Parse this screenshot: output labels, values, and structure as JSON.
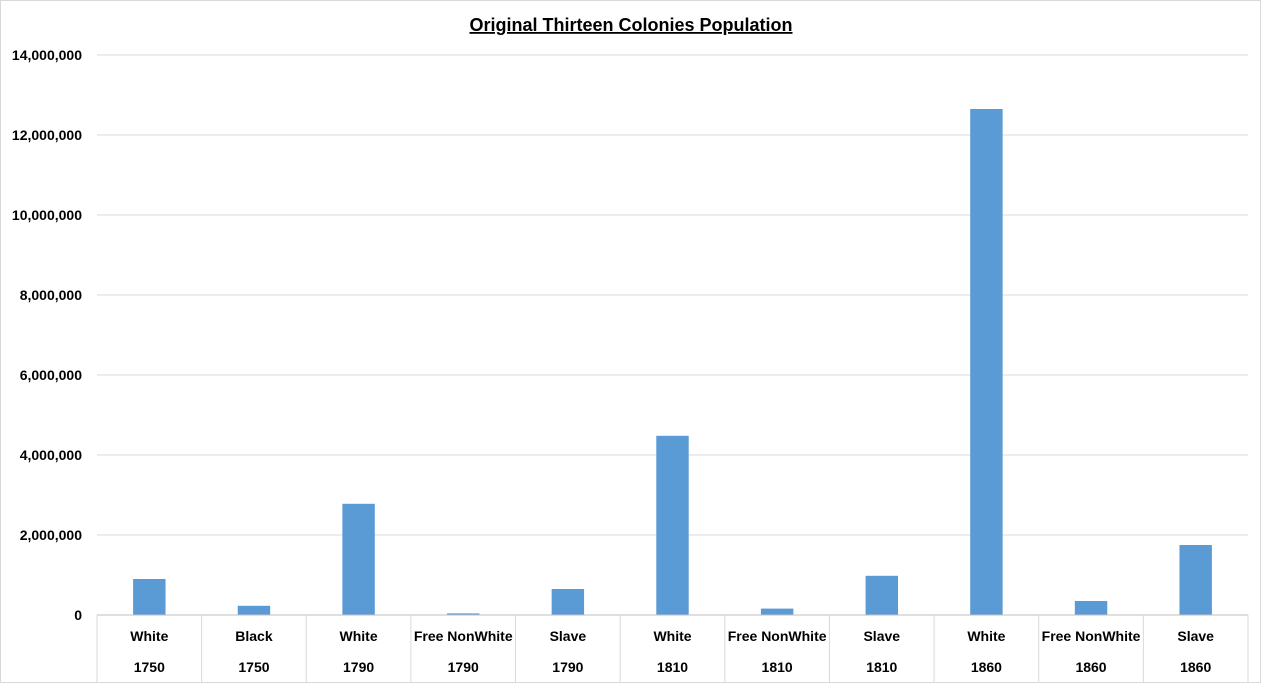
{
  "chart_data": {
    "type": "bar",
    "title": "Original Thirteen Colonies Population",
    "xlabel": "",
    "ylabel": "",
    "ylim": [
      0,
      14000000
    ],
    "yticks": [
      "0",
      "2,000,000",
      "4,000,000",
      "6,000,000",
      "8,000,000",
      "10,000,000",
      "12,000,000",
      "14,000,000"
    ],
    "ytick_values": [
      0,
      2000000,
      4000000,
      6000000,
      8000000,
      10000000,
      12000000,
      14000000
    ],
    "grid": true,
    "legend": "none",
    "categories": [
      {
        "label": "White",
        "group": "1750"
      },
      {
        "label": "Black",
        "group": "1750"
      },
      {
        "label": "White",
        "group": "1790"
      },
      {
        "label": "Free NonWhite",
        "group": "1790"
      },
      {
        "label": "Slave",
        "group": "1790"
      },
      {
        "label": "White",
        "group": "1810"
      },
      {
        "label": "Free NonWhite",
        "group": "1810"
      },
      {
        "label": "Slave",
        "group": "1810"
      },
      {
        "label": "White",
        "group": "1860"
      },
      {
        "label": "Free NonWhite",
        "group": "1860"
      },
      {
        "label": "Slave",
        "group": "1860"
      }
    ],
    "values": [
      900000,
      230000,
      2780000,
      40000,
      650000,
      4480000,
      160000,
      980000,
      12650000,
      350000,
      1750000
    ],
    "colors": {
      "bar": "#5b9bd5",
      "grid": "#d9d9d9",
      "axis": "#bfbfbf",
      "text": "#000000"
    }
  }
}
